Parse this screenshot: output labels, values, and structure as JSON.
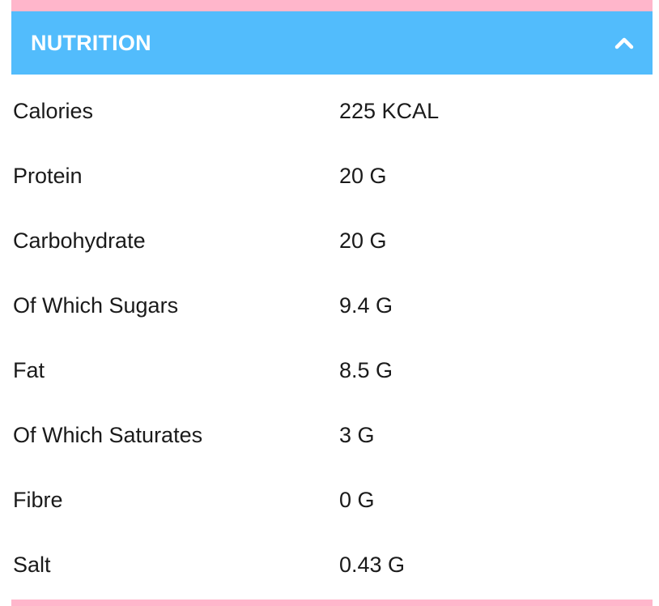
{
  "accordion": {
    "title": "NUTRITION",
    "expanded": true,
    "toggle_icon": "chevron-up-icon"
  },
  "colors": {
    "header_bg": "#52bcfc",
    "accent_strip": "#ffb6cb",
    "header_text": "#ffffff",
    "body_text": "#1a1a1a"
  },
  "nutrition": {
    "rows": [
      {
        "label": "Calories",
        "value": "225 KCAL"
      },
      {
        "label": "Protein",
        "value": "20 G"
      },
      {
        "label": "Carbohydrate",
        "value": "20 G"
      },
      {
        "label": "Of Which Sugars",
        "value": "9.4 G"
      },
      {
        "label": "Fat",
        "value": "8.5 G"
      },
      {
        "label": "Of Which Saturates",
        "value": "3 G"
      },
      {
        "label": "Fibre",
        "value": "0 G"
      },
      {
        "label": "Salt",
        "value": "0.43 G"
      }
    ]
  }
}
